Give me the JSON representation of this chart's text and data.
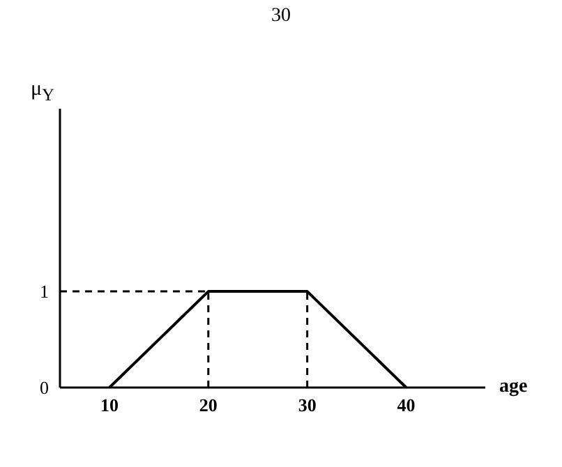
{
  "chart_data": {
    "type": "line",
    "xlabel": "age",
    "ylabel": "μ$_{Y}$",
    "annotations": [
      "30"
    ],
    "xlim": [
      5,
      48
    ],
    "ylim": [
      0,
      2.9
    ],
    "xticks": [
      10,
      20,
      30,
      40
    ],
    "yticks": [
      0,
      1
    ],
    "grid": false,
    "legend": false,
    "marker": "none",
    "series": [
      {
        "x": [
          10,
          20,
          30,
          40
        ],
        "values": [
          0,
          1,
          1,
          0
        ],
        "color": "#000000",
        "line_style": "solid"
      },
      {
        "x": [
          5,
          20
        ],
        "values": [
          1,
          1
        ],
        "color": "#000000",
        "line_style": "dashed"
      },
      {
        "x": [
          20,
          20
        ],
        "values": [
          0,
          1
        ],
        "color": "#000000",
        "line_style": "dashed"
      },
      {
        "x": [
          30,
          30
        ],
        "values": [
          0,
          1
        ],
        "color": "#000000",
        "line_style": "dashed"
      }
    ]
  }
}
